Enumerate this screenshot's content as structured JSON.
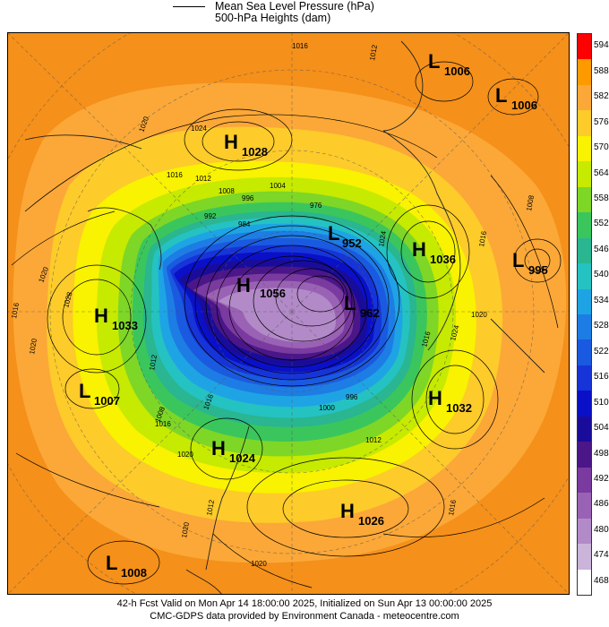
{
  "header": {
    "legend_line1": "Mean Sea Level Pressure (hPa)",
    "legend_line2": "500-hPa Heights (dam)"
  },
  "footer": {
    "line1": "42-h Fcst Valid on Mon Apr 14 18:00:00 2025, Initialized on Sun Apr 13 00:00:00 2025",
    "line2": "CMC-GDPS data provided by Environment Canada - meteocentre.com"
  },
  "colorbar": {
    "levels": [
      "594",
      "588",
      "582",
      "576",
      "570",
      "564",
      "558",
      "552",
      "546",
      "540",
      "534",
      "528",
      "522",
      "516",
      "510",
      "504",
      "498",
      "492",
      "486",
      "480",
      "474",
      "468"
    ],
    "colors": [
      "#ff0000",
      "#fd9a00",
      "#fba838",
      "#fdcb2a",
      "#f9f200",
      "#c6ea00",
      "#7ed627",
      "#3ac65c",
      "#29b690",
      "#25c2c2",
      "#1ea4e4",
      "#1d7de4",
      "#1a5ae0",
      "#1634d8",
      "#0a10c8",
      "#1a0c9a",
      "#4a1688",
      "#7a3aa0",
      "#9a62b4",
      "#b28ac8",
      "#cab4da",
      "#ffffff"
    ]
  },
  "pressure_centers": [
    {
      "type": "L",
      "value": "1006"
    },
    {
      "type": "L",
      "value": "1006"
    },
    {
      "type": "H",
      "value": "1028"
    },
    {
      "type": "L",
      "value": "952"
    },
    {
      "type": "H",
      "value": "1036"
    },
    {
      "type": "L",
      "value": "995"
    },
    {
      "type": "H",
      "value": "1056"
    },
    {
      "type": "L",
      "value": "962"
    },
    {
      "type": "H",
      "value": "1033"
    },
    {
      "type": "L",
      "value": "1007"
    },
    {
      "type": "H",
      "value": "1032"
    },
    {
      "type": "H",
      "value": "1024"
    },
    {
      "type": "H",
      "value": "1026"
    },
    {
      "type": "L",
      "value": "1008"
    }
  ],
  "contour_labels": [
    "1016",
    "1012",
    "1020",
    "1024",
    "1016",
    "1012",
    "1008",
    "1004",
    "996",
    "992",
    "976",
    "984",
    "1024",
    "1016",
    "1008",
    "1020",
    "1016",
    "1028",
    "1020",
    "1020",
    "1024",
    "1016",
    "1012",
    "1016",
    "1000",
    "1008",
    "996",
    "1012",
    "1016",
    "1020",
    "1016",
    "1020",
    "1020",
    "1012"
  ]
}
